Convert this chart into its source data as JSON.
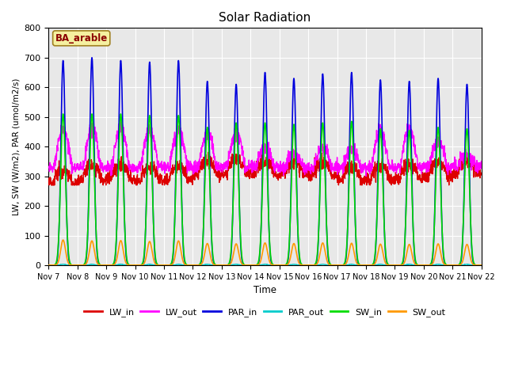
{
  "title": "Solar Radiation",
  "ylabel": "LW, SW (W/m2), PAR (umol/m2/s)",
  "xlabel": "Time",
  "annotation": "BA_arable",
  "ylim": [
    0,
    800
  ],
  "background_color": "#e8e8e8",
  "series": {
    "LW_in": {
      "color": "#dd0000",
      "linewidth": 1.0
    },
    "LW_out": {
      "color": "#ff00ff",
      "linewidth": 1.0
    },
    "PAR_in": {
      "color": "#0000dd",
      "linewidth": 1.2
    },
    "PAR_out": {
      "color": "#00cccc",
      "linewidth": 1.0
    },
    "SW_in": {
      "color": "#00dd00",
      "linewidth": 1.2
    },
    "SW_out": {
      "color": "#ff9900",
      "linewidth": 1.2
    }
  },
  "xtick_labels": [
    "Nov 7",
    "Nov 8",
    "Nov 9",
    "Nov 10",
    "Nov 11",
    "Nov 12",
    "Nov 13",
    "Nov 14",
    "Nov 15",
    "Nov 16",
    "Nov 17",
    "Nov 18",
    "Nov 19",
    "Nov 20",
    "Nov 21",
    "Nov 22"
  ],
  "num_days": 15,
  "total_hours": 360,
  "par_peaks": [
    690,
    700,
    690,
    685,
    690,
    620,
    610,
    650,
    630,
    645,
    650,
    625,
    620,
    630,
    610
  ],
  "sw_peaks": [
    510,
    510,
    510,
    505,
    505,
    465,
    480,
    480,
    475,
    480,
    485,
    460,
    455,
    465,
    460
  ],
  "sw_out_peaks": [
    85,
    82,
    83,
    80,
    82,
    73,
    72,
    75,
    73,
    75,
    74,
    71,
    70,
    72,
    70
  ],
  "lw_in_day": [
    295,
    310,
    310,
    305,
    308,
    325,
    330,
    325,
    325,
    322,
    305,
    308,
    312,
    320,
    330
  ],
  "lw_out_day_peak": [
    455,
    460,
    460,
    455,
    455,
    445,
    450,
    395,
    375,
    395,
    390,
    455,
    455,
    420,
    375
  ]
}
